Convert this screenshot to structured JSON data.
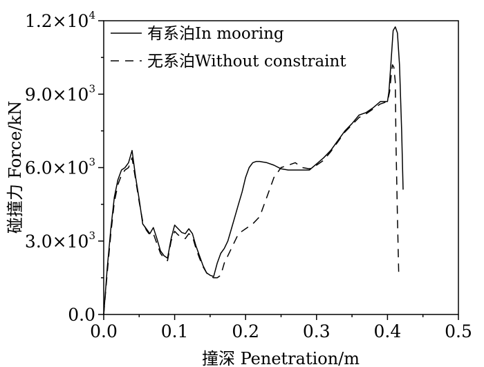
{
  "chart_data": {
    "type": "line",
    "xlabel": "撞深 Penetration/m",
    "ylabel": "碰撞力 Force/kN",
    "xlim": [
      0,
      0.5
    ],
    "ylim": [
      0,
      12000
    ],
    "xticks": [
      0,
      0.1,
      0.2,
      0.3,
      0.4,
      0.5
    ],
    "xtick_labels": [
      "0.0",
      "0.1",
      "0.2",
      "0.3",
      "0.4",
      "0.5"
    ],
    "yticks": [
      0,
      3000,
      6000,
      9000,
      12000
    ],
    "ytick_labels": [
      {
        "mantissa": "0.0",
        "exponent": ""
      },
      {
        "mantissa": "3.0×10",
        "exponent": "3"
      },
      {
        "mantissa": "6.0×10",
        "exponent": "3"
      },
      {
        "mantissa": "9.0×10",
        "exponent": "3"
      },
      {
        "mantissa": "1.2×10",
        "exponent": "4"
      }
    ],
    "grid": false,
    "legend_position": "top-left",
    "series": [
      {
        "name": "有系泊In mooring",
        "style": "solid",
        "color": "#000000",
        "x": [
          0.0,
          0.005,
          0.01,
          0.015,
          0.02,
          0.025,
          0.03,
          0.035,
          0.04,
          0.045,
          0.05,
          0.055,
          0.06,
          0.065,
          0.07,
          0.075,
          0.08,
          0.085,
          0.09,
          0.095,
          0.1,
          0.105,
          0.11,
          0.115,
          0.12,
          0.125,
          0.13,
          0.135,
          0.14,
          0.145,
          0.15,
          0.155,
          0.16,
          0.165,
          0.17,
          0.175,
          0.18,
          0.185,
          0.19,
          0.195,
          0.2,
          0.205,
          0.21,
          0.215,
          0.22,
          0.23,
          0.24,
          0.25,
          0.26,
          0.27,
          0.28,
          0.29,
          0.3,
          0.31,
          0.32,
          0.33,
          0.34,
          0.35,
          0.36,
          0.37,
          0.38,
          0.39,
          0.4,
          0.402,
          0.405,
          0.408,
          0.411,
          0.414,
          0.417,
          0.42,
          0.422
        ],
        "y": [
          0,
          1900,
          3500,
          4800,
          5500,
          5900,
          6000,
          6200,
          6700,
          5600,
          4700,
          3700,
          3500,
          3300,
          3550,
          3100,
          2600,
          2400,
          2300,
          3100,
          3650,
          3500,
          3350,
          3300,
          3500,
          3300,
          2800,
          2400,
          2000,
          1700,
          1600,
          1550,
          2100,
          2500,
          2700,
          3000,
          3500,
          4000,
          4500,
          5000,
          5600,
          6000,
          6200,
          6250,
          6250,
          6200,
          6100,
          5950,
          5900,
          5900,
          5900,
          5900,
          6150,
          6400,
          6700,
          7100,
          7500,
          7800,
          8150,
          8250,
          8450,
          8700,
          8700,
          9100,
          10300,
          11600,
          11750,
          11500,
          10200,
          7500,
          5100
        ]
      },
      {
        "name": "无系泊Without constraint",
        "style": "dashed",
        "color": "#000000",
        "x": [
          0.0,
          0.005,
          0.01,
          0.015,
          0.02,
          0.025,
          0.03,
          0.035,
          0.04,
          0.045,
          0.05,
          0.055,
          0.06,
          0.065,
          0.07,
          0.075,
          0.08,
          0.085,
          0.09,
          0.095,
          0.1,
          0.105,
          0.11,
          0.115,
          0.12,
          0.125,
          0.13,
          0.135,
          0.14,
          0.145,
          0.15,
          0.155,
          0.16,
          0.165,
          0.17,
          0.18,
          0.19,
          0.2,
          0.21,
          0.22,
          0.23,
          0.24,
          0.25,
          0.26,
          0.27,
          0.28,
          0.29,
          0.3,
          0.31,
          0.32,
          0.33,
          0.34,
          0.35,
          0.36,
          0.37,
          0.38,
          0.39,
          0.4,
          0.403,
          0.405,
          0.407,
          0.409,
          0.411,
          0.412,
          0.414,
          0.416
        ],
        "y": [
          0,
          1700,
          3300,
          4600,
          5300,
          5700,
          5900,
          6000,
          6400,
          5500,
          4600,
          3800,
          3450,
          3250,
          3300,
          2900,
          2500,
          2300,
          2200,
          3000,
          3400,
          3250,
          3150,
          3100,
          3300,
          3200,
          2700,
          2300,
          1950,
          1700,
          1550,
          1500,
          1500,
          1600,
          2100,
          2700,
          3300,
          3500,
          3700,
          4000,
          4800,
          5600,
          6000,
          6100,
          6200,
          6000,
          5950,
          6100,
          6300,
          6650,
          7050,
          7450,
          7750,
          8050,
          8200,
          8400,
          8600,
          8700,
          9100,
          9700,
          10200,
          10100,
          9500,
          7000,
          4000,
          1500
        ]
      }
    ]
  }
}
